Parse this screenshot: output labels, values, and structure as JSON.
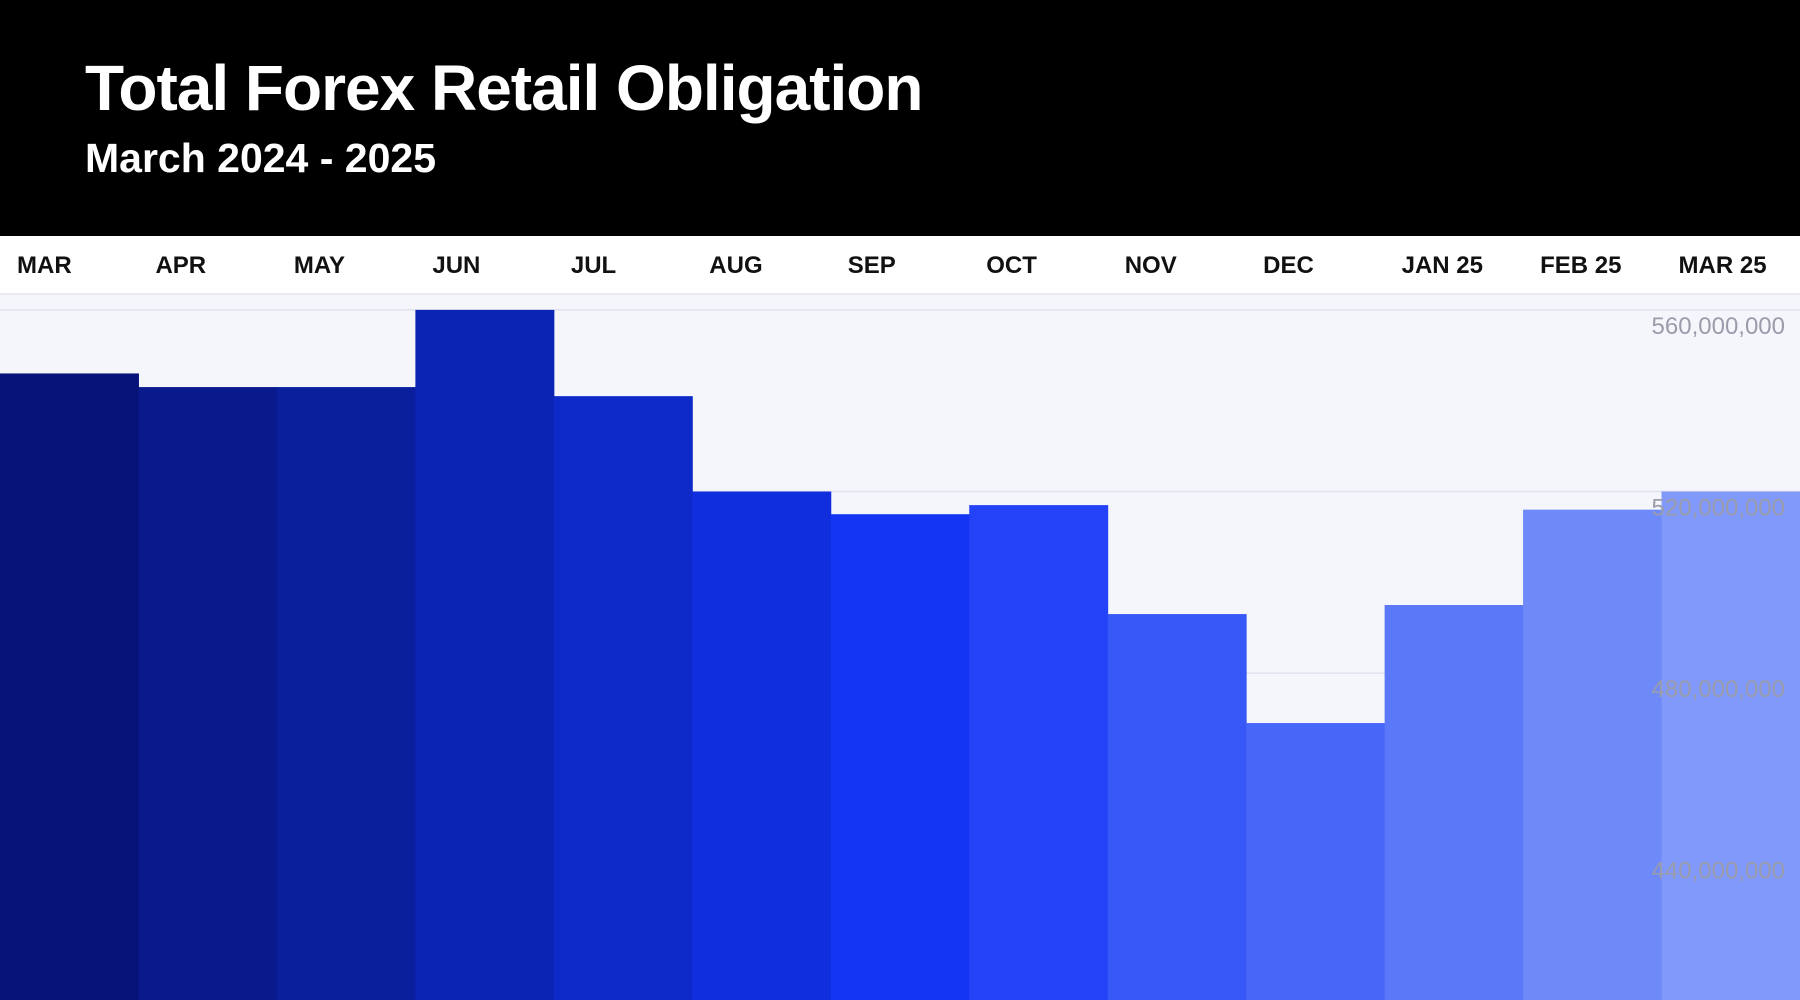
{
  "header": {
    "title": "Total Forex Retail Obligation",
    "subtitle": "March 2024 - 2025"
  },
  "colors": {
    "header_background": "#000000",
    "chart_background": "#f5f6fc",
    "month_label": "#111111",
    "tick_label": "#9a9cab",
    "bar_colors": [
      "#08137a",
      "#091a8c",
      "#0a1f9c",
      "#0c24b4",
      "#0d2ac9",
      "#102ede",
      "#1535f5",
      "#2442f7",
      "#3757f7",
      "#4866f7",
      "#5b78f8",
      "#6e8af9",
      "#8099fa"
    ]
  },
  "chart_data": {
    "type": "bar",
    "title": "Total Forex Retail Obligation",
    "subtitle": "March 2024 - 2025",
    "categories": [
      "MAR",
      "APR",
      "MAY",
      "JUN",
      "JUL",
      "AUG",
      "SEP",
      "OCT",
      "NOV",
      "DEC",
      "JAN 25",
      "FEB 25",
      "MAR 25"
    ],
    "values": [
      546000000,
      543000000,
      543000000,
      560000000,
      541000000,
      520000000,
      515000000,
      517000000,
      493000000,
      469000000,
      495000000,
      516000000,
      520000000
    ],
    "yticks": [
      440000000,
      480000000,
      520000000,
      560000000
    ],
    "ytick_labels": [
      "440,000,000",
      "480,000,000",
      "520,000,000",
      "560,000,000"
    ],
    "ylim": [
      408000000,
      563500000
    ],
    "xlabel": "",
    "ylabel": "",
    "grid": true,
    "x_axis_position": "top",
    "y_axis_position": "right",
    "legend": "none"
  }
}
